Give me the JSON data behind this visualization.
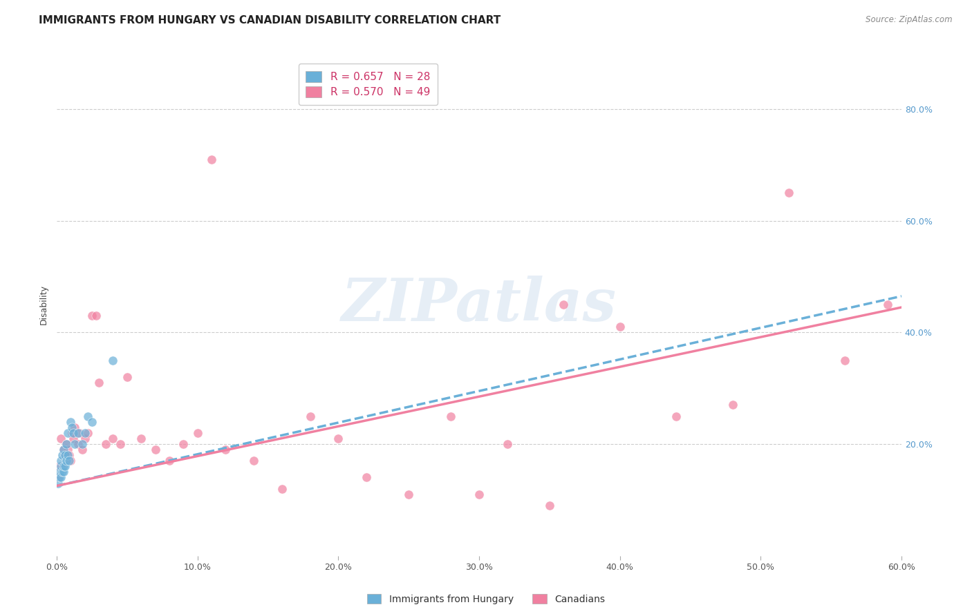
{
  "title": "IMMIGRANTS FROM HUNGARY VS CANADIAN DISABILITY CORRELATION CHART",
  "source": "Source: ZipAtlas.com",
  "ylabel": "Disability",
  "xlim": [
    0.0,
    0.6
  ],
  "ylim": [
    0.0,
    0.9
  ],
  "ytick_positions": [
    0.2,
    0.4,
    0.6,
    0.8
  ],
  "ytick_labels": [
    "20.0%",
    "40.0%",
    "60.0%",
    "80.0%"
  ],
  "xtick_positions": [
    0.0,
    0.1,
    0.2,
    0.3,
    0.4,
    0.5,
    0.6
  ],
  "xtick_labels": [
    "0.0%",
    "10.0%",
    "20.0%",
    "30.0%",
    "40.0%",
    "50.0%",
    "60.0%"
  ],
  "watermark_text": "ZIPatlas",
  "series1_name": "Immigrants from Hungary",
  "series1_color": "#6ab0d8",
  "series1_R": 0.657,
  "series1_N": 28,
  "series1_x": [
    0.001,
    0.002,
    0.002,
    0.003,
    0.003,
    0.003,
    0.004,
    0.004,
    0.005,
    0.005,
    0.005,
    0.006,
    0.006,
    0.007,
    0.007,
    0.008,
    0.008,
    0.009,
    0.01,
    0.011,
    0.012,
    0.013,
    0.015,
    0.018,
    0.02,
    0.022,
    0.025,
    0.04
  ],
  "series1_y": [
    0.13,
    0.14,
    0.15,
    0.14,
    0.16,
    0.17,
    0.15,
    0.18,
    0.15,
    0.16,
    0.19,
    0.16,
    0.18,
    0.17,
    0.2,
    0.22,
    0.18,
    0.17,
    0.24,
    0.23,
    0.22,
    0.2,
    0.22,
    0.2,
    0.22,
    0.25,
    0.24,
    0.35
  ],
  "series2_name": "Canadians",
  "series2_color": "#f080a0",
  "series2_R": 0.57,
  "series2_N": 49,
  "series2_x": [
    0.001,
    0.002,
    0.003,
    0.004,
    0.005,
    0.006,
    0.007,
    0.008,
    0.009,
    0.01,
    0.011,
    0.012,
    0.013,
    0.015,
    0.016,
    0.018,
    0.02,
    0.022,
    0.025,
    0.028,
    0.03,
    0.035,
    0.04,
    0.045,
    0.05,
    0.06,
    0.07,
    0.08,
    0.09,
    0.1,
    0.11,
    0.12,
    0.14,
    0.16,
    0.18,
    0.2,
    0.22,
    0.25,
    0.28,
    0.32,
    0.36,
    0.4,
    0.44,
    0.48,
    0.52,
    0.56,
    0.59,
    0.3,
    0.35
  ],
  "series2_y": [
    0.14,
    0.16,
    0.21,
    0.16,
    0.19,
    0.18,
    0.2,
    0.19,
    0.18,
    0.17,
    0.22,
    0.21,
    0.23,
    0.2,
    0.22,
    0.19,
    0.21,
    0.22,
    0.43,
    0.43,
    0.31,
    0.2,
    0.21,
    0.2,
    0.32,
    0.21,
    0.19,
    0.17,
    0.2,
    0.22,
    0.71,
    0.19,
    0.17,
    0.12,
    0.25,
    0.21,
    0.14,
    0.11,
    0.25,
    0.2,
    0.45,
    0.41,
    0.25,
    0.27,
    0.65,
    0.35,
    0.45,
    0.11,
    0.09
  ],
  "trend1_x0": 0.0,
  "trend1_y0": 0.125,
  "trend1_x1": 0.6,
  "trend1_y1": 0.465,
  "trend2_x0": 0.0,
  "trend2_y0": 0.125,
  "trend2_x1": 0.6,
  "trend2_y1": 0.445,
  "background_color": "#ffffff",
  "grid_color": "#cccccc",
  "title_fontsize": 11,
  "axis_label_fontsize": 9,
  "tick_fontsize": 9,
  "legend_fontsize": 11,
  "source_fontsize": 8.5
}
